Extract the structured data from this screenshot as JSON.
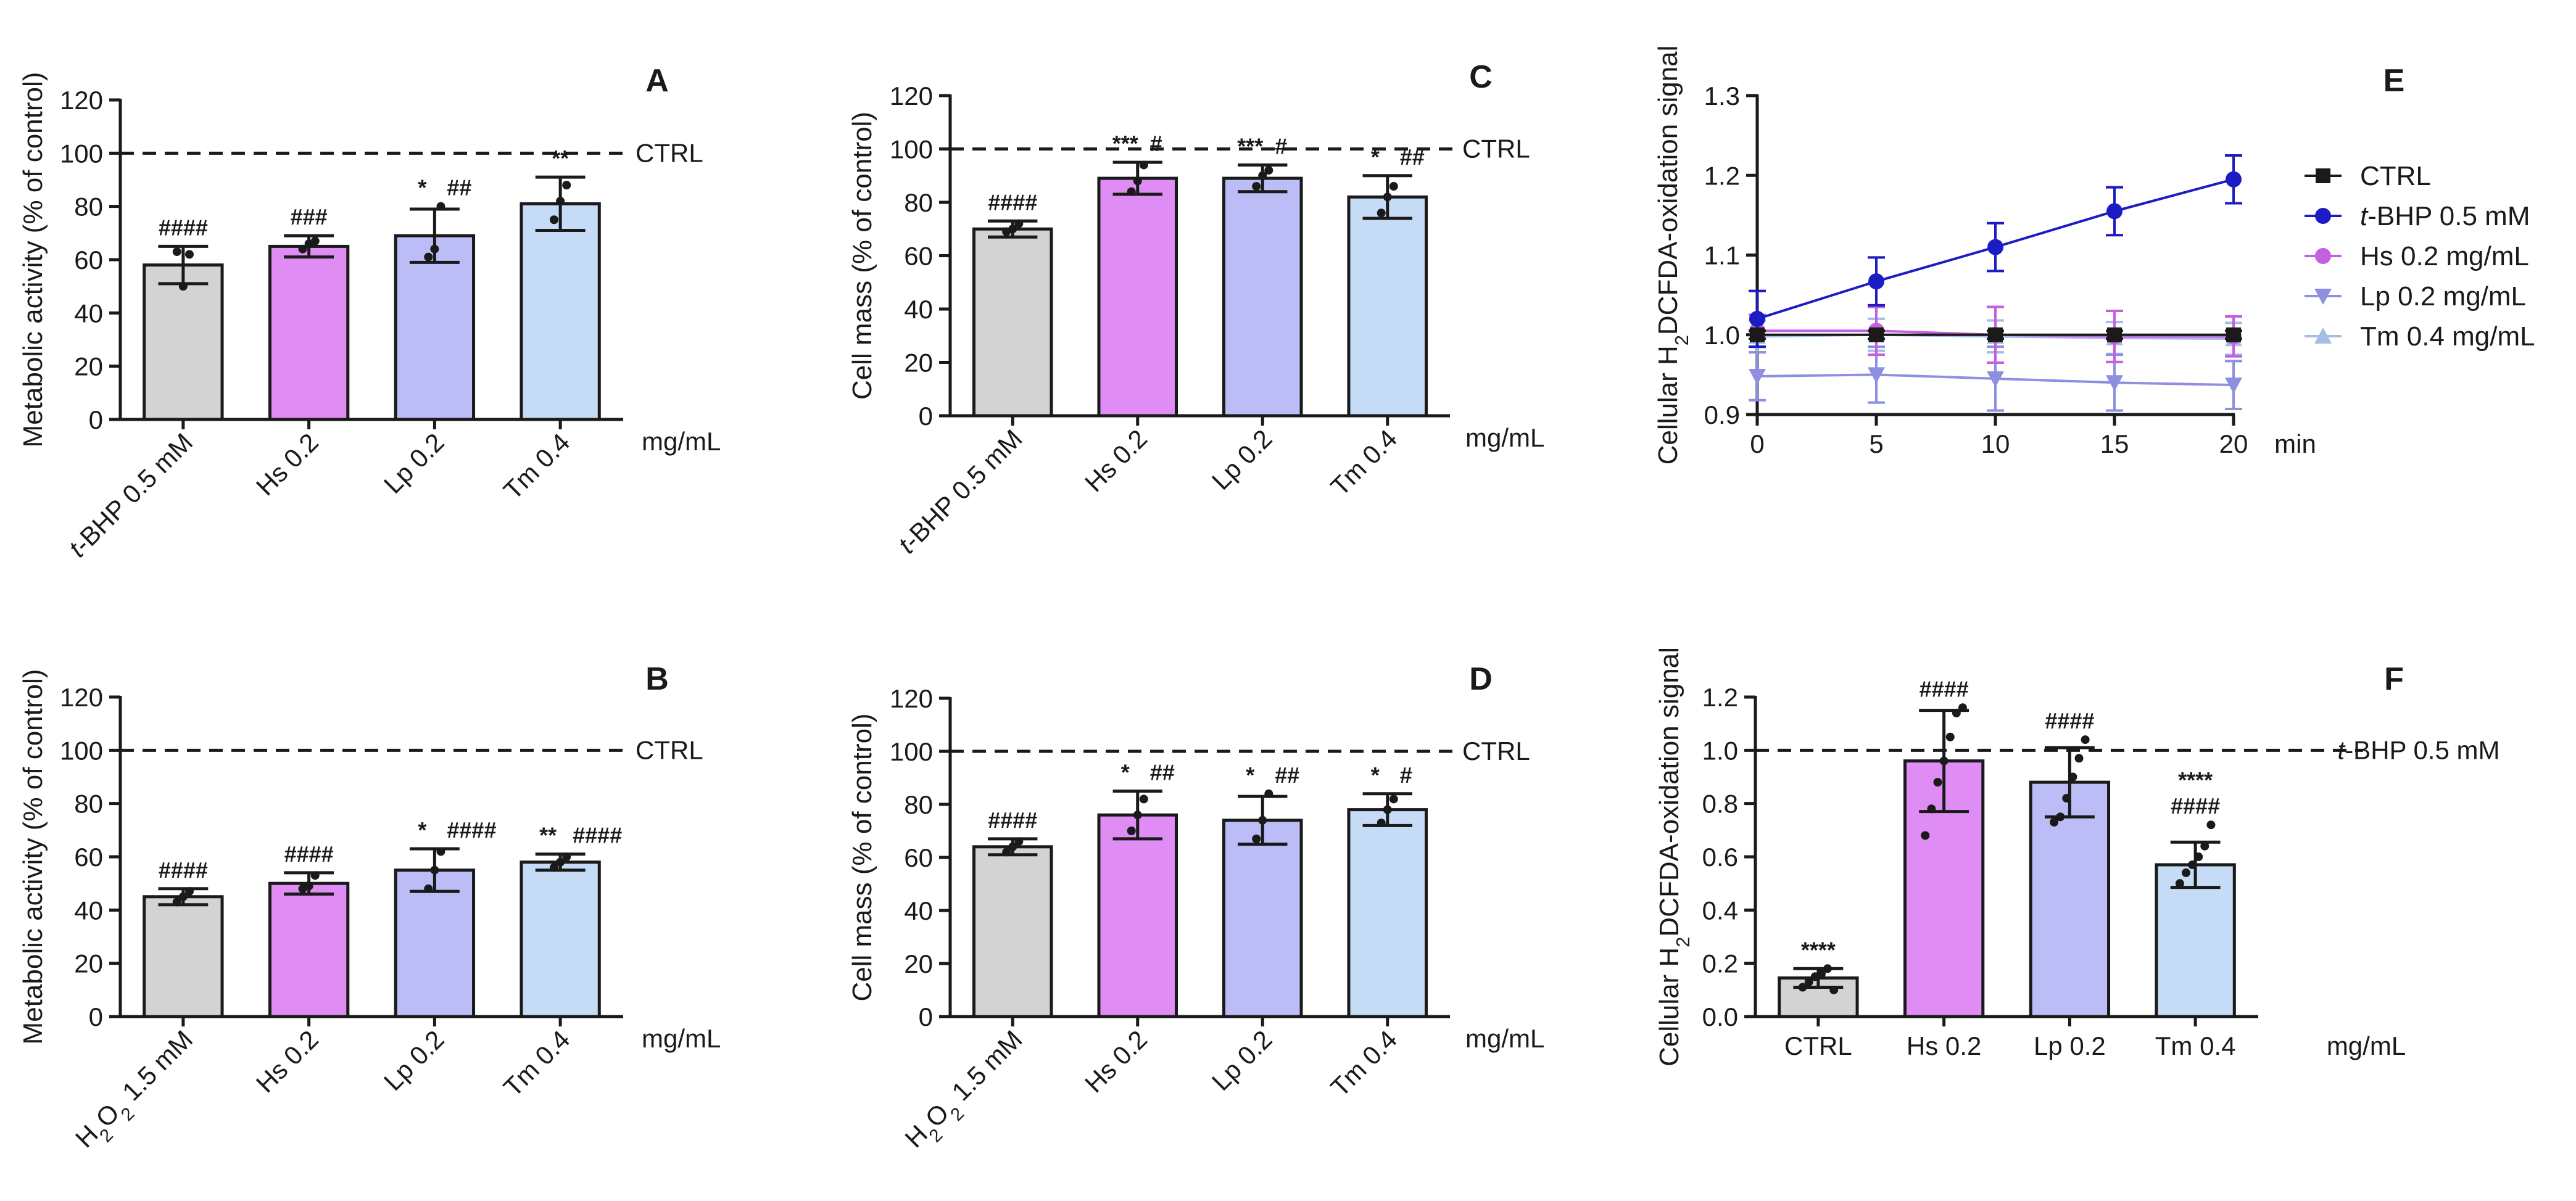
{
  "figure": {
    "colors": {
      "control_gray": "#d3d3d3",
      "hs_pink": "#e08cf5",
      "lp_lavender": "#bcbdf7",
      "tm_lightblue": "#c6dcf6",
      "line_ctrl": "#1a1a1a",
      "line_tbhp": "#1c1cc4",
      "line_hs": "#c45fe0",
      "line_lp": "#8e8fe0",
      "line_tm": "#a3bde6"
    }
  },
  "chart_data": [
    {
      "panel": "A",
      "type": "bar",
      "ylabel": "Metabolic activity (% of control)",
      "ylim": [
        0,
        120
      ],
      "yticks": [
        0,
        20,
        40,
        60,
        80,
        100,
        120
      ],
      "categories": [
        "t-BHP 0.5 mM",
        "Hs 0.2",
        "Lp 0.2",
        "Tm 0.4"
      ],
      "unit_label": "mg/mL",
      "reference": {
        "value": 100,
        "label": "CTRL"
      },
      "values": [
        58,
        65,
        69,
        81
      ],
      "errors": [
        7,
        4,
        10,
        10
      ],
      "points": [
        [
          63,
          50,
          62
        ],
        [
          64,
          66,
          67
        ],
        [
          61,
          64,
          80
        ],
        [
          75,
          82,
          88
        ]
      ],
      "annotations": [
        [
          "####"
        ],
        [
          "###"
        ],
        [
          "*",
          "##"
        ],
        [
          "**"
        ]
      ]
    },
    {
      "panel": "B",
      "type": "bar",
      "ylabel": "Metabolic activity (% of control)",
      "ylim": [
        0,
        120
      ],
      "yticks": [
        0,
        20,
        40,
        60,
        80,
        100,
        120
      ],
      "categories": [
        "H2O2 1.5 mM",
        "Hs 0.2",
        "Lp 0.2",
        "Tm 0.4"
      ],
      "unit_label": "mg/mL",
      "reference": {
        "value": 100,
        "label": "CTRL"
      },
      "values": [
        45,
        50,
        55,
        58
      ],
      "errors": [
        3,
        4,
        8,
        3
      ],
      "points": [
        [
          43,
          45,
          47
        ],
        [
          48,
          49,
          53
        ],
        [
          48,
          55,
          62
        ],
        [
          56,
          58,
          60
        ]
      ],
      "annotations": [
        [
          "####"
        ],
        [
          "####"
        ],
        [
          "*",
          "####"
        ],
        [
          "**",
          "####"
        ]
      ]
    },
    {
      "panel": "C",
      "type": "bar",
      "ylabel": "Cell mass (% of control)",
      "ylim": [
        0,
        120
      ],
      "yticks": [
        0,
        20,
        40,
        60,
        80,
        100,
        120
      ],
      "categories": [
        "t-BHP 0.5 mM",
        "Hs 0.2",
        "Lp 0.2",
        "Tm 0.4"
      ],
      "unit_label": "mg/mL",
      "reference": {
        "value": 100,
        "label": "CTRL"
      },
      "values": [
        70,
        89,
        89,
        82
      ],
      "errors": [
        3,
        6,
        5,
        8
      ],
      "points": [
        [
          69,
          70,
          72
        ],
        [
          84,
          88,
          94
        ],
        [
          86,
          90,
          92
        ],
        [
          76,
          82,
          86
        ]
      ],
      "annotations": [
        [
          "####"
        ],
        [
          "***",
          "#"
        ],
        [
          "***",
          "#"
        ],
        [
          "*",
          "##"
        ]
      ]
    },
    {
      "panel": "D",
      "type": "bar",
      "ylabel": "Cell mass (% of control)",
      "ylim": [
        0,
        120
      ],
      "yticks": [
        0,
        20,
        40,
        60,
        80,
        100,
        120
      ],
      "categories": [
        "H2O2 1.5 mM",
        "Hs 0.2",
        "Lp 0.2",
        "Tm 0.4"
      ],
      "unit_label": "mg/mL",
      "reference": {
        "value": 100,
        "label": "CTRL"
      },
      "values": [
        64,
        76,
        74,
        78
      ],
      "errors": [
        3,
        9,
        9,
        6
      ],
      "points": [
        [
          62,
          64,
          66
        ],
        [
          70,
          76,
          82
        ],
        [
          67,
          74,
          84
        ],
        [
          73,
          78,
          82
        ]
      ],
      "annotations": [
        [
          "####"
        ],
        [
          "*",
          "##"
        ],
        [
          "*",
          "##"
        ],
        [
          "*",
          "#"
        ]
      ]
    },
    {
      "panel": "E",
      "type": "line",
      "ylabel": "Cellular H2DCFDA-oxidation signal",
      "xlabel": "min",
      "xlim": [
        0,
        20
      ],
      "xticks": [
        0,
        5,
        10,
        15,
        20
      ],
      "ylim": [
        0.9,
        1.3
      ],
      "yticks": [
        0.9,
        1.0,
        1.1,
        1.2,
        1.3
      ],
      "x": [
        0,
        5,
        10,
        15,
        20
      ],
      "series": [
        {
          "name": "CTRL",
          "marker": "square",
          "values": [
            1.0,
            1.0,
            1.0,
            1.0,
            1.0
          ],
          "errors": [
            0.005,
            0.005,
            0.005,
            0.005,
            0.005
          ]
        },
        {
          "name": "t-BHP 0.5 mM",
          "marker": "circle",
          "values": [
            1.02,
            1.067,
            1.11,
            1.155,
            1.195
          ],
          "errors": [
            0.035,
            0.03,
            0.03,
            0.03,
            0.03
          ]
        },
        {
          "name": "Hs 0.2 mg/mL",
          "marker": "circle",
          "values": [
            1.005,
            1.005,
            1.0,
            0.998,
            0.998
          ],
          "errors": [
            0.02,
            0.03,
            0.035,
            0.032,
            0.025
          ]
        },
        {
          "name": "Lp 0.2 mg/mL",
          "marker": "triangle-down",
          "values": [
            0.948,
            0.95,
            0.945,
            0.94,
            0.937
          ],
          "errors": [
            0.03,
            0.035,
            0.04,
            0.035,
            0.03
          ]
        },
        {
          "name": "Tm 0.4 mg/mL",
          "marker": "triangle-up",
          "values": [
            0.998,
            1.0,
            0.998,
            0.996,
            0.995
          ],
          "errors": [
            0.02,
            0.02,
            0.02,
            0.02,
            0.02
          ]
        }
      ]
    },
    {
      "panel": "F",
      "type": "bar",
      "ylabel": "Cellular H2DCFDA-oxidation signal",
      "ylim": [
        0,
        1.2
      ],
      "yticks": [
        0.0,
        0.2,
        0.4,
        0.6,
        0.8,
        1.0,
        1.2
      ],
      "categories": [
        "CTRL",
        "Hs 0.2",
        "Lp 0.2",
        "Tm 0.4"
      ],
      "unit_label": "mg/mL",
      "reference": {
        "value": 1.0,
        "label": "t-BHP 0.5 mM"
      },
      "values": [
        0.145,
        0.96,
        0.88,
        0.57
      ],
      "errors": [
        0.035,
        0.19,
        0.13,
        0.085
      ],
      "points": [
        [
          0.11,
          0.13,
          0.15,
          0.16,
          0.18,
          0.1
        ],
        [
          0.68,
          0.78,
          0.88,
          0.96,
          1.05,
          1.14,
          1.16
        ],
        [
          0.73,
          0.75,
          0.82,
          0.9,
          0.97,
          1.04
        ],
        [
          0.5,
          0.54,
          0.57,
          0.6,
          0.64,
          0.72
        ]
      ],
      "annotations": [
        [
          "****"
        ],
        [
          "####"
        ],
        [
          "####"
        ],
        [
          "****",
          "####"
        ]
      ]
    }
  ]
}
